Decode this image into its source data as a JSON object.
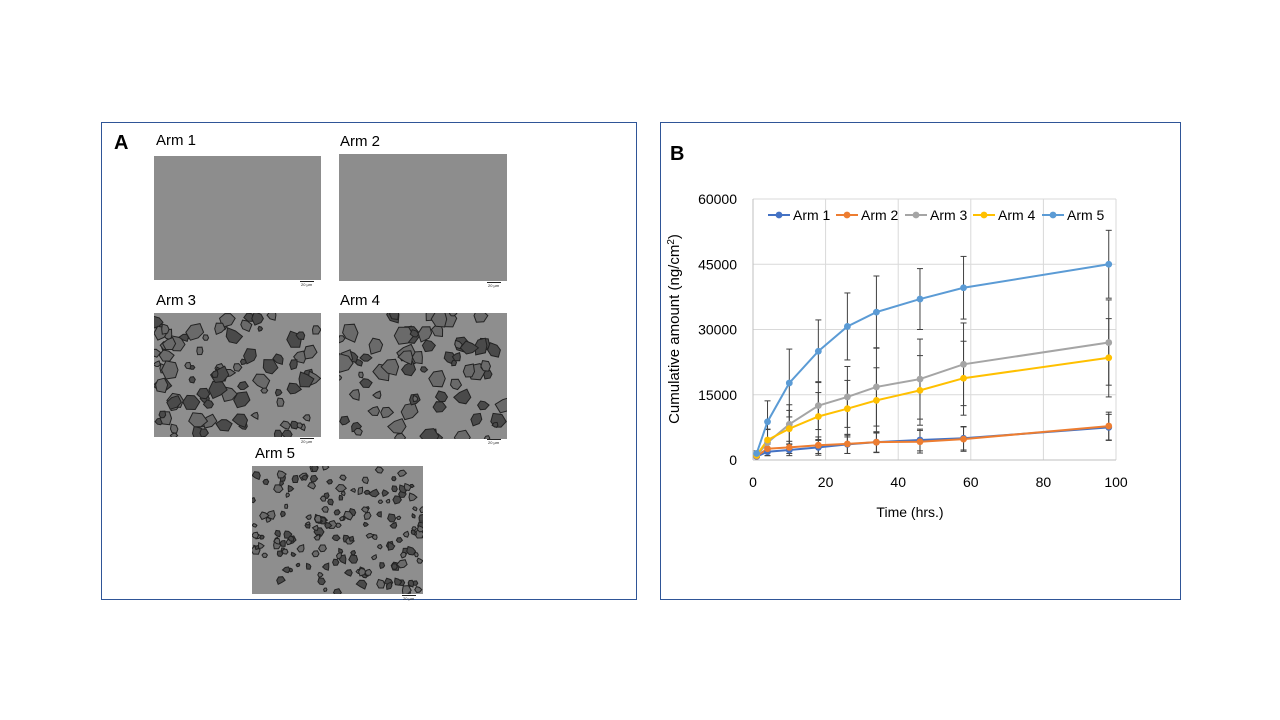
{
  "panel_a": {
    "letter": "A",
    "images": [
      {
        "label": "Arm 1",
        "type": "smooth",
        "scale_text": "20 µm"
      },
      {
        "label": "Arm 2",
        "type": "smooth",
        "scale_text": "20 µm"
      },
      {
        "label": "Arm 3",
        "type": "particles",
        "scale_text": "20 µm"
      },
      {
        "label": "Arm 4",
        "type": "particles",
        "scale_text": "20 µm"
      },
      {
        "label": "Arm 5",
        "type": "fine-particles",
        "scale_text": "20 µm"
      }
    ]
  },
  "panel_b": {
    "letter": "B"
  },
  "chart_data": {
    "type": "line",
    "title": "",
    "xlabel": "Time (hrs.)",
    "ylabel": "Cumulative amount (ng/cm",
    "ylabel_sup": "2",
    "ylabel_close": ")",
    "xlim": [
      0,
      100
    ],
    "ylim": [
      0,
      60000
    ],
    "xticks": [
      0,
      20,
      40,
      60,
      80,
      100
    ],
    "yticks": [
      0,
      15000,
      30000,
      45000,
      60000
    ],
    "grid": true,
    "legend": "top",
    "x": [
      1,
      4,
      10,
      18,
      26,
      34,
      46,
      58,
      98
    ],
    "series": [
      {
        "name": "Arm 1",
        "color": "#4472c4",
        "values": [
          800,
          1900,
          2300,
          2900,
          3600,
          4100,
          4600,
          5000,
          7500
        ],
        "errors": [
          300,
          900,
          1300,
          1800,
          2100,
          2300,
          2500,
          2700,
          3000
        ]
      },
      {
        "name": "Arm 2",
        "color": "#ed7d31",
        "values": [
          900,
          2600,
          2900,
          3400,
          3700,
          4100,
          4200,
          4800,
          7800
        ],
        "errors": [
          300,
          1000,
          1400,
          1900,
          2200,
          2400,
          2600,
          2800,
          3200
        ]
      },
      {
        "name": "Arm 3",
        "color": "#a5a5a5",
        "values": [
          1000,
          4000,
          8200,
          12500,
          14500,
          16800,
          18600,
          22000,
          27000
        ],
        "errors": [
          400,
          3000,
          4500,
          5500,
          7000,
          9000,
          9200,
          9500,
          9800
        ]
      },
      {
        "name": "Arm 4",
        "color": "#ffc000",
        "values": [
          1100,
          4600,
          7200,
          10000,
          11800,
          13700,
          16000,
          18800,
          23500
        ],
        "errors": [
          400,
          2500,
          4200,
          5500,
          6500,
          7500,
          8000,
          8500,
          9000
        ]
      },
      {
        "name": "Arm 5",
        "color": "#5b9bd5",
        "values": [
          1500,
          8800,
          17700,
          25000,
          30700,
          34000,
          37000,
          39600,
          45000
        ],
        "errors": [
          600,
          4800,
          7800,
          7200,
          7700,
          8300,
          7000,
          7200,
          7800
        ]
      }
    ]
  }
}
